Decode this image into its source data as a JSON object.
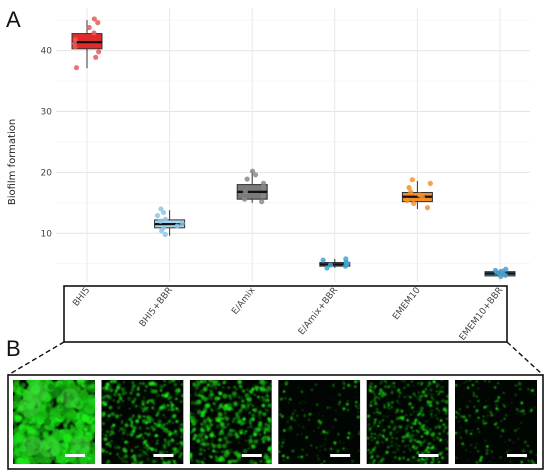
{
  "panels": {
    "a_label": "A",
    "b_label": "B"
  },
  "chart_data": {
    "type": "box",
    "title": "",
    "xlabel": "",
    "ylabel": "Biofilm formation",
    "ylim": [
      2,
      47
    ],
    "yticks": [
      10,
      20,
      30,
      40
    ],
    "grid": true,
    "categories": [
      "BHI5",
      "BHI5+BBR",
      "E/Amix",
      "E/Amix+BBR",
      "EMEM10",
      "EMEM10+BBR"
    ],
    "colors": [
      "#e02b2b",
      "#a9d6ef",
      "#7a7a7a",
      "#3d9ccc",
      "#f08d28",
      "#4b8eb8"
    ],
    "point_colors": [
      "#e45b5b",
      "#8fc6e4",
      "#8a8a8a",
      "#3ea6d6",
      "#f4922e",
      "#4aa0d0"
    ],
    "boxes": [
      {
        "q1": 40.3,
        "median": 41.4,
        "q3": 42.8,
        "whisker_low": 37.1,
        "whisker_high": 45.0,
        "points": [
          37.2,
          38.9,
          39.8,
          40.6,
          41.2,
          41.8,
          42.9,
          43.8,
          44.6,
          45.2
        ]
      },
      {
        "q1": 10.9,
        "median": 11.5,
        "q3": 12.2,
        "whisker_low": 9.6,
        "whisker_high": 13.8,
        "points": [
          9.8,
          10.4,
          10.9,
          11.2,
          11.6,
          12.0,
          12.3,
          12.9,
          13.4,
          14.0
        ]
      },
      {
        "q1": 15.6,
        "median": 16.8,
        "q3": 18.0,
        "whisker_low": 15.0,
        "whisker_high": 20.2,
        "points": [
          15.2,
          15.6,
          16.1,
          16.8,
          17.5,
          18.2,
          18.9,
          19.6,
          20.2
        ]
      },
      {
        "q1": 4.6,
        "median": 4.9,
        "q3": 5.2,
        "whisker_low": 4.3,
        "whisker_high": 5.8,
        "points": [
          4.3,
          4.6,
          4.8,
          5.0,
          5.1,
          5.3,
          5.6,
          5.8
        ]
      },
      {
        "q1": 15.2,
        "median": 16.0,
        "q3": 16.7,
        "whisker_low": 14.0,
        "whisker_high": 18.6,
        "points": [
          14.2,
          14.9,
          15.4,
          15.9,
          16.3,
          16.8,
          17.5,
          18.2,
          18.8
        ]
      },
      {
        "q1": 3.0,
        "median": 3.4,
        "q3": 3.7,
        "whisker_low": 2.9,
        "whisker_high": 4.1,
        "points": [
          2.9,
          3.1,
          3.3,
          3.4,
          3.6,
          3.8,
          3.9,
          4.1
        ]
      }
    ]
  },
  "micrographs": [
    {
      "category": "BHI5",
      "density": 0.92,
      "blob_scale": 3.2
    },
    {
      "category": "BHI5+BBR",
      "density": 0.55,
      "blob_scale": 1.3
    },
    {
      "category": "E/Amix",
      "density": 0.6,
      "blob_scale": 1.5
    },
    {
      "category": "E/Amix+BBR",
      "density": 0.12,
      "blob_scale": 0.9
    },
    {
      "category": "EMEM10",
      "density": 0.7,
      "blob_scale": 1.0
    },
    {
      "category": "EMEM10+BBR",
      "density": 0.15,
      "blob_scale": 0.9
    }
  ]
}
